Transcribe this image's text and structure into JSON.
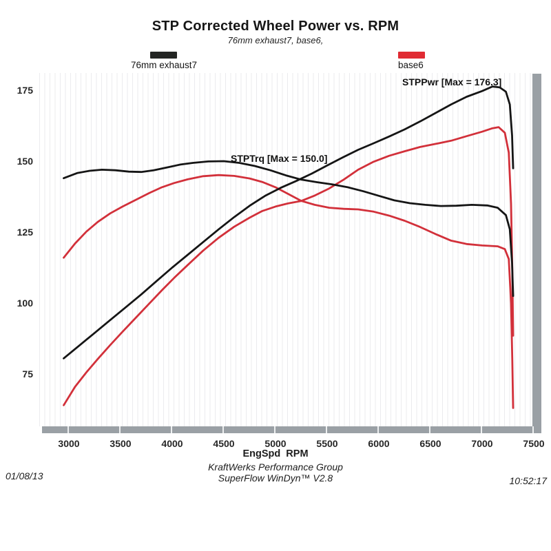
{
  "title": "STP Corrected Wheel Power vs. RPM",
  "subtitle": "76mm exhaust7, base6,",
  "legend": [
    {
      "label": "76mm exhaust7",
      "color": "#232523"
    },
    {
      "label": "base6",
      "color": "#e02b33"
    }
  ],
  "annotations": {
    "power_max": "STPPwr [Max = 176.3]",
    "torque_max": "STPTrq [Max = 150.0]"
  },
  "footer": {
    "company": "KraftWerks Performance Group",
    "software": "SuperFlow WinDyn™ V2.8",
    "date": "01/08/13",
    "time": "10:52:17"
  },
  "chart_data": {
    "type": "line",
    "title": "STP Corrected Wheel Power vs. RPM",
    "xlabel": "EngSpd  RPM",
    "ylabel": "",
    "xlim": [
      2740,
      7490
    ],
    "ylim": [
      56,
      181
    ],
    "x_ticks": [
      3000,
      3500,
      4000,
      4500,
      5000,
      5500,
      6000,
      6500,
      7000,
      7500
    ],
    "y_ticks": [
      175,
      150,
      125,
      100,
      75
    ],
    "grid": "fine vertical lines every 50 rpm",
    "legend_position": "top",
    "series": [
      {
        "name": "base6 STPPwr",
        "run": "base6",
        "color": "#d2303a",
        "points": [
          [
            2950,
            64
          ],
          [
            3060,
            70.5
          ],
          [
            3170,
            75.6
          ],
          [
            3280,
            80.3
          ],
          [
            3400,
            85.2
          ],
          [
            3520,
            89.9
          ],
          [
            3650,
            94.9
          ],
          [
            3780,
            99.9
          ],
          [
            3900,
            104.5
          ],
          [
            4020,
            108.9
          ],
          [
            4150,
            113.4
          ],
          [
            4300,
            118.5
          ],
          [
            4450,
            123
          ],
          [
            4600,
            126.9
          ],
          [
            4750,
            130.1
          ],
          [
            4870,
            132.4
          ],
          [
            5000,
            134
          ],
          [
            5120,
            135.1
          ],
          [
            5250,
            136
          ],
          [
            5380,
            137.9
          ],
          [
            5520,
            140.4
          ],
          [
            5660,
            143.5
          ],
          [
            5800,
            147
          ],
          [
            5950,
            149.8
          ],
          [
            6100,
            151.9
          ],
          [
            6250,
            153.5
          ],
          [
            6400,
            155
          ],
          [
            6550,
            156.1
          ],
          [
            6700,
            157.2
          ],
          [
            6850,
            158.8
          ],
          [
            7000,
            160.4
          ],
          [
            7100,
            161.6
          ],
          [
            7160,
            162
          ],
          [
            7220,
            160
          ],
          [
            7258,
            153
          ],
          [
            7280,
            135
          ],
          [
            7292,
            112
          ],
          [
            7300,
            88.5
          ]
        ]
      },
      {
        "name": "base6 STPTrq",
        "run": "base6",
        "color": "#d2303a",
        "points": [
          [
            2950,
            116
          ],
          [
            3060,
            121
          ],
          [
            3170,
            125.2
          ],
          [
            3280,
            128.6
          ],
          [
            3400,
            131.6
          ],
          [
            3520,
            134
          ],
          [
            3650,
            136.4
          ],
          [
            3780,
            138.8
          ],
          [
            3900,
            140.8
          ],
          [
            4020,
            142.3
          ],
          [
            4150,
            143.6
          ],
          [
            4300,
            144.7
          ],
          [
            4450,
            145.1
          ],
          [
            4600,
            144.8
          ],
          [
            4750,
            143.9
          ],
          [
            4870,
            142.7
          ],
          [
            5000,
            140.8
          ],
          [
            5120,
            138.5
          ],
          [
            5250,
            136
          ],
          [
            5380,
            134.6
          ],
          [
            5520,
            133.6
          ],
          [
            5660,
            133.2
          ],
          [
            5800,
            133
          ],
          [
            5950,
            132.2
          ],
          [
            6100,
            130.8
          ],
          [
            6250,
            129
          ],
          [
            6400,
            126.8
          ],
          [
            6550,
            124.3
          ],
          [
            6700,
            122
          ],
          [
            6850,
            120.8
          ],
          [
            7000,
            120.3
          ],
          [
            7150,
            120
          ],
          [
            7220,
            119
          ],
          [
            7258,
            115.5
          ],
          [
            7280,
            100
          ],
          [
            7292,
            80
          ],
          [
            7300,
            63
          ]
        ]
      },
      {
        "name": "76mm exhaust7 STPPwr",
        "run": "76mm exhaust7",
        "color": "#151515",
        "max": 176.3,
        "points": [
          [
            2950,
            80.5
          ],
          [
            3100,
            85
          ],
          [
            3250,
            89.5
          ],
          [
            3400,
            94
          ],
          [
            3550,
            98.5
          ],
          [
            3700,
            103
          ],
          [
            3850,
            107.8
          ],
          [
            4000,
            112.5
          ],
          [
            4150,
            117
          ],
          [
            4300,
            121.5
          ],
          [
            4450,
            126
          ],
          [
            4600,
            130.3
          ],
          [
            4750,
            134.3
          ],
          [
            4900,
            137.8
          ],
          [
            5050,
            140.6
          ],
          [
            5200,
            143
          ],
          [
            5350,
            145.6
          ],
          [
            5500,
            148.5
          ],
          [
            5650,
            151.3
          ],
          [
            5800,
            154
          ],
          [
            5950,
            156.3
          ],
          [
            6100,
            158.7
          ],
          [
            6250,
            161.2
          ],
          [
            6400,
            164
          ],
          [
            6550,
            167
          ],
          [
            6700,
            170
          ],
          [
            6850,
            172.7
          ],
          [
            7000,
            174.7
          ],
          [
            7100,
            176.3
          ],
          [
            7170,
            176
          ],
          [
            7230,
            174.5
          ],
          [
            7268,
            170
          ],
          [
            7290,
            159
          ],
          [
            7300,
            147.5
          ]
        ]
      },
      {
        "name": "76mm exhaust7 STPTrq",
        "run": "76mm exhaust7",
        "color": "#151515",
        "max": 150.0,
        "points": [
          [
            2950,
            144
          ],
          [
            3080,
            145.8
          ],
          [
            3200,
            146.6
          ],
          [
            3320,
            147
          ],
          [
            3450,
            146.8
          ],
          [
            3580,
            146.3
          ],
          [
            3700,
            146.2
          ],
          [
            3820,
            146.8
          ],
          [
            3950,
            147.8
          ],
          [
            4080,
            148.8
          ],
          [
            4200,
            149.4
          ],
          [
            4350,
            149.9
          ],
          [
            4500,
            150
          ],
          [
            4650,
            149.4
          ],
          [
            4800,
            148.3
          ],
          [
            4950,
            146.8
          ],
          [
            5100,
            145
          ],
          [
            5250,
            143.5
          ],
          [
            5400,
            142.6
          ],
          [
            5550,
            141.8
          ],
          [
            5700,
            140.8
          ],
          [
            5850,
            139.4
          ],
          [
            6000,
            137.8
          ],
          [
            6150,
            136.2
          ],
          [
            6300,
            135.2
          ],
          [
            6450,
            134.6
          ],
          [
            6600,
            134.2
          ],
          [
            6750,
            134.3
          ],
          [
            6900,
            134.6
          ],
          [
            7050,
            134.4
          ],
          [
            7150,
            133.6
          ],
          [
            7230,
            131
          ],
          [
            7268,
            126
          ],
          [
            7290,
            114
          ],
          [
            7300,
            102.5
          ]
        ]
      }
    ]
  }
}
